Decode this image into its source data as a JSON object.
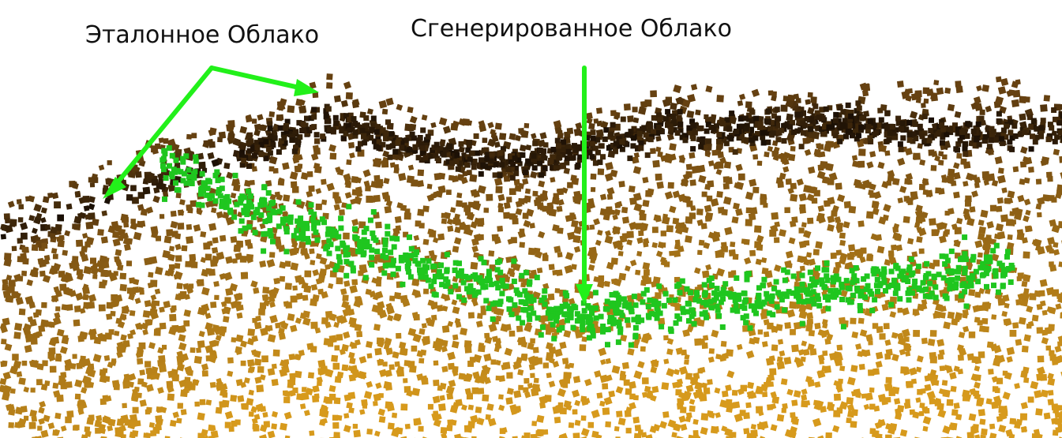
{
  "labels": {
    "reference_cloud": "Эталонное Облако",
    "generated_cloud": "Сгенерированное Облако"
  },
  "colors": {
    "background": "#ffffff",
    "arrow": "#22f01a",
    "generated_points": "#1fc61f",
    "reference_dark": "#1a0f05",
    "reference_mid": "#6e4712",
    "reference_light": "#d79a1c"
  },
  "clouds": {
    "reference": {
      "description_shape": "dense band with gradient",
      "density": "high"
    },
    "generated": {
      "density": "medium"
    }
  }
}
